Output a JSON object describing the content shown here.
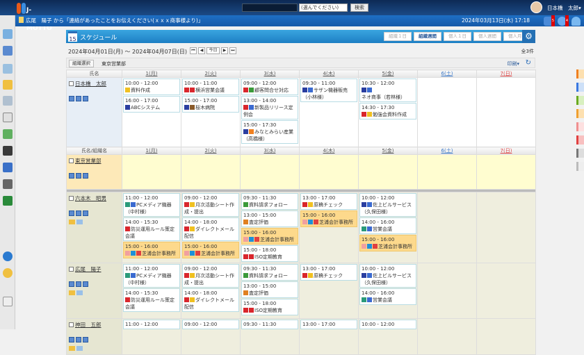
{
  "header": {
    "logo": "J-MOTTO",
    "search_select": "(選んでください)",
    "search_button": "検索",
    "user": "日本橋　太郎▾"
  },
  "notice": {
    "text": "広尾　陽子 から「連絡があったことをお伝えください(ｘｘｘ商事様より)」",
    "datetime": "2024年03月13日(水) 17:18",
    "badges": [
      "5",
      "4"
    ]
  },
  "page": {
    "title": "スケジュール",
    "cal_icon": "15",
    "views": [
      "組織１日",
      "組織週間",
      "個人１日",
      "個人週間",
      "個人月間"
    ],
    "active_view": "組織週間",
    "range": "2024年04月01日(月) ～ 2024年04月07日(日)",
    "nav": [
      "⏮",
      "◀",
      "今日",
      "▶",
      "⏭"
    ],
    "count": "全3件",
    "org_select": "組織選択",
    "org_name": "東京営業部",
    "print": "印刷▾"
  },
  "columns": {
    "name": "氏名",
    "name_org": "氏名/組織名",
    "days": [
      "1(月)",
      "2(火)",
      "3(水)",
      "4(木)",
      "5(金)",
      "6(土)",
      "7(日)"
    ]
  },
  "colors": {
    "internal": "#d9262c",
    "external": "#2a3ea0",
    "meeting": "#2a9a7a",
    "highlight": "#fdd98c",
    "accent": "#1d7fc4"
  },
  "rows": [
    {
      "name": "日本橋　太郎",
      "type": "p1",
      "days": [
        [
          {
            "t": "10:00 - 12:00",
            "s": "資料作成",
            "i": [
              "#f0c020"
            ]
          },
          {
            "t": "16:00 - 17:00",
            "s": "ABCシステム",
            "i": [
              "#2a3ea0"
            ]
          }
        ],
        [
          {
            "t": "10:00 - 11:00",
            "s": "横浜営業会議",
            "i": [
              "#d9262c",
              "#d9262c"
            ]
          },
          {
            "t": "15:00 - 17:00",
            "s": "桜木病院",
            "i": [
              "#2a3ea0",
              "#8a5a2a"
            ]
          }
        ],
        [
          {
            "t": "09:00 - 12:00",
            "s": "顧客問合せ対応",
            "i": [
              "#d9262c",
              "#3a9a3a"
            ]
          },
          {
            "t": "13:00 - 14:00",
            "s": "新製品リリース定例会",
            "i": [
              "#d9262c",
              "#3a6ad0"
            ]
          },
          {
            "t": "15:00 - 17:30",
            "s": "みなとみらい産業（高橋様）",
            "i": [
              "#2a3ea0",
              "#f08020"
            ]
          }
        ],
        [
          {
            "t": "09:30 - 11:00",
            "s": "サザン機器販売（小林様）",
            "i": [
              "#2a3ea0",
              "#3a6ad0"
            ]
          }
        ],
        [
          {
            "t": "10:30 - 12:00",
            "s": "ネオ商事（若林様）",
            "i": [
              "#2a3ea0",
              "#3a6ad0"
            ]
          },
          {
            "t": "14:30 - 17:30",
            "s": "勉強会資料作成",
            "i": [
              "#d9262c",
              "#f0c020"
            ]
          }
        ],
        [],
        []
      ]
    },
    {
      "name": "東京営業部",
      "type": "dept",
      "days": [
        [],
        [],
        [],
        [],
        [],
        [],
        []
      ]
    },
    {
      "name": "六本木　昭男",
      "type": "u",
      "days": [
        [
          {
            "t": "11:00 - 12:00",
            "s": "PCメディア機器（中村様）",
            "i": [
              "#2a9a7a",
              "#3a6ad0"
            ]
          },
          {
            "t": "14:00 - 15:30",
            "s": "防災運用ルール策定会議",
            "i": [
              "#d9262c"
            ]
          },
          {
            "t": "15:00 - 16:00",
            "s": "芝浦会計事務所",
            "i": [
              "#f0a0a0",
              "#1e90d8",
              "#e04040"
            ],
            "h": true
          }
        ],
        [
          {
            "t": "09:00 - 12:00",
            "s": "月次活動シート作成・提出",
            "i": [
              "#d9262c",
              "#f0c020"
            ]
          },
          {
            "t": "14:00 - 18:00",
            "s": "ダイレクトメール配信",
            "i": [
              "#d9262c",
              "#f0c020"
            ]
          },
          {
            "t": "15:00 - 16:00",
            "s": "芝浦会計事務所",
            "i": [
              "#f0a0a0",
              "#1e90d8",
              "#e04040"
            ],
            "h": true
          }
        ],
        [
          {
            "t": "09:30 - 11:30",
            "s": "資料請求フォロー",
            "i": [
              "#3a9a3a"
            ]
          },
          {
            "t": "13:00 - 15:00",
            "s": "査定評価",
            "i": [
              "#e08020"
            ]
          },
          {
            "t": "15:00 - 16:00",
            "s": "芝浦会計事務所",
            "i": [
              "#f0a0a0",
              "#1e90d8",
              "#e04040"
            ],
            "h": true
          },
          {
            "t": "15:00 - 18:00",
            "s": "ISO定期教育",
            "i": [
              "#d9262c",
              "#d9262c"
            ]
          }
        ],
        [
          {
            "t": "13:00 - 17:00",
            "s": "原稿チェック",
            "i": [
              "#d9262c",
              "#f0c020"
            ]
          },
          {
            "t": "15:00 - 16:00",
            "s": "芝浦会計事務所",
            "i": [
              "#f0a0a0",
              "#1e90d8",
              "#e04040"
            ],
            "h": true
          }
        ],
        [
          {
            "t": "10:00 - 12:00",
            "s": "佐上ビルサービス（久保田様）",
            "i": [
              "#2a3ea0",
              "#3a6ad0"
            ]
          },
          {
            "t": "14:00 - 16:00",
            "s": "営業会議",
            "i": [
              "#2a9a7a",
              "#3a6ad0"
            ]
          },
          {
            "t": "15:00 - 16:00",
            "s": "芝浦会計事務所",
            "i": [
              "#f0a0a0",
              "#1e90d8",
              "#e04040"
            ],
            "h": true
          }
        ],
        [],
        []
      ]
    },
    {
      "name": "広尾　陽子",
      "type": "u",
      "days": [
        [
          {
            "t": "11:00 - 12:00",
            "s": "PCメディア機器（中村様）",
            "i": [
              "#2a9a7a",
              "#3a6ad0"
            ]
          },
          {
            "t": "14:00 - 15:30",
            "s": "防災運用ルール策定会議",
            "i": [
              "#d9262c"
            ]
          }
        ],
        [
          {
            "t": "09:00 - 12:00",
            "s": "月次活動シート作成・提出",
            "i": [
              "#d9262c",
              "#f0c020"
            ]
          },
          {
            "t": "14:00 - 18:00",
            "s": "ダイレクトメール配信",
            "i": [
              "#d9262c",
              "#f0c020"
            ]
          }
        ],
        [
          {
            "t": "09:30 - 11:30",
            "s": "資料請求フォロー",
            "i": [
              "#3a9a3a"
            ]
          },
          {
            "t": "13:00 - 15:00",
            "s": "査定評価",
            "i": [
              "#e08020"
            ]
          },
          {
            "t": "15:00 - 18:00",
            "s": "ISO定期教育",
            "i": [
              "#d9262c",
              "#d9262c"
            ]
          }
        ],
        [
          {
            "t": "13:00 - 17:00",
            "s": "原稿チェック",
            "i": [
              "#d9262c",
              "#f0c020"
            ]
          }
        ],
        [
          {
            "t": "10:00 - 12:00",
            "s": "佐上ビルサービス（久保田様）",
            "i": [
              "#2a3ea0",
              "#3a6ad0"
            ]
          },
          {
            "t": "14:00 - 16:00",
            "s": "営業会議",
            "i": [
              "#2a9a7a",
              "#3a6ad0"
            ]
          }
        ],
        [],
        []
      ]
    },
    {
      "name": "神田　五郎",
      "type": "u",
      "days": [
        [
          {
            "t": "11:00 - 12:00",
            "s": "",
            "i": []
          }
        ],
        [
          {
            "t": "09:00 - 12:00",
            "s": "",
            "i": []
          }
        ],
        [
          {
            "t": "09:30 - 11:30",
            "s": "",
            "i": []
          }
        ],
        [
          {
            "t": "13:00 - 17:00",
            "s": "",
            "i": []
          }
        ],
        [
          {
            "t": "10:00 - 12:00",
            "s": "",
            "i": []
          }
        ],
        [],
        []
      ]
    }
  ]
}
